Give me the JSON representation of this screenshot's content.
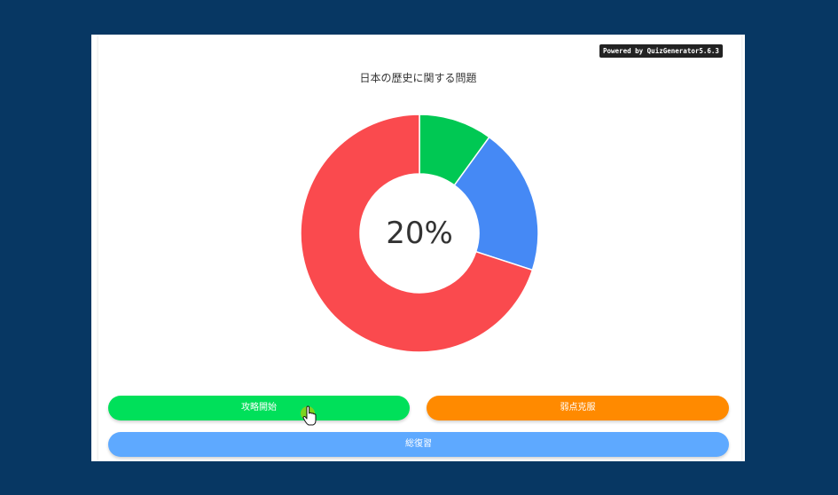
{
  "powered_by": "Powered by QuizGenerator5.6.3",
  "quiz_title": "日本の歴史に関する問題",
  "center_label": "20%",
  "colors": {
    "background": "#073763",
    "green": "#00c853",
    "blue": "#4589f5",
    "red": "#fa4a4e"
  },
  "chart_data": {
    "type": "pie",
    "donut": true,
    "center_text": "20%",
    "values": [
      10,
      20,
      70
    ],
    "colors": [
      "#00c853",
      "#4589f5",
      "#fa4a4e"
    ]
  },
  "buttons": {
    "start": "攻略開始",
    "weakness": "弱点克服",
    "review": "総復習"
  }
}
